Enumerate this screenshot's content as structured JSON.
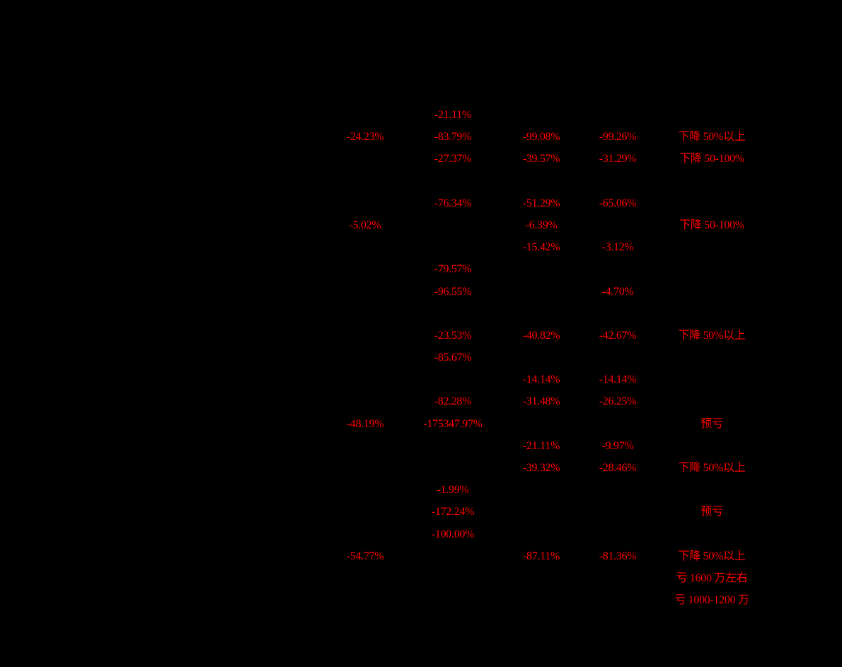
{
  "colors": {
    "background": "#000000",
    "negative_text": "#ff0000"
  },
  "table": {
    "rows": [
      {
        "c1": "",
        "c2": "-21.11%",
        "c3": "",
        "c4": "",
        "c5": ""
      },
      {
        "c1": "-24.23%",
        "c2": "-83.79%",
        "c3": "-99.08%",
        "c4": "-99.26%",
        "c5": "下降 50%以上"
      },
      {
        "c1": "",
        "c2": "-27.37%",
        "c3": "-39.57%",
        "c4": "-31.29%",
        "c5": "下降 50-100%"
      },
      {
        "c1": "",
        "c2": "",
        "c3": "",
        "c4": "",
        "c5": ""
      },
      {
        "c1": "",
        "c2": "-76.34%",
        "c3": "-51.29%",
        "c4": "-65.06%",
        "c5": ""
      },
      {
        "c1": "-5.02%",
        "c2": "",
        "c3": "-6.39%",
        "c4": "",
        "c5": "下降 50-100%"
      },
      {
        "c1": "",
        "c2": "",
        "c3": "-15.42%",
        "c4": "-3.12%",
        "c5": ""
      },
      {
        "c1": "",
        "c2": "-79.57%",
        "c3": "",
        "c4": "",
        "c5": ""
      },
      {
        "c1": "",
        "c2": "-96.55%",
        "c3": "",
        "c4": "-4.70%",
        "c5": ""
      },
      {
        "c1": "",
        "c2": "",
        "c3": "",
        "c4": "",
        "c5": ""
      },
      {
        "c1": "",
        "c2": "-23.53%",
        "c3": "-40.82%",
        "c4": "-42.67%",
        "c5": "下降 50%以上"
      },
      {
        "c1": "",
        "c2": "-85.67%",
        "c3": "",
        "c4": "",
        "c5": ""
      },
      {
        "c1": "",
        "c2": "",
        "c3": "-14.14%",
        "c4": "-14.14%",
        "c5": ""
      },
      {
        "c1": "",
        "c2": "-82.28%",
        "c3": "-31.48%",
        "c4": "-26.25%",
        "c5": ""
      },
      {
        "c1": "-48.19%",
        "c2": "-175347.97%",
        "c3": "",
        "c4": "",
        "c5": "预亏"
      },
      {
        "c1": "",
        "c2": "",
        "c3": "-21.11%",
        "c4": "-9.97%",
        "c5": ""
      },
      {
        "c1": "",
        "c2": "",
        "c3": "-39.32%",
        "c4": "-28.46%",
        "c5": "下降 50%以上"
      },
      {
        "c1": "",
        "c2": "-1.99%",
        "c3": "",
        "c4": "",
        "c5": ""
      },
      {
        "c1": "",
        "c2": "-172.24%",
        "c3": "",
        "c4": "",
        "c5": "预亏"
      },
      {
        "c1": "",
        "c2": "-100.00%",
        "c3": "",
        "c4": "",
        "c5": ""
      },
      {
        "c1": "-54.77%",
        "c2": "",
        "c3": "-87.11%",
        "c4": "-81.36%",
        "c5": "下降 50%以上"
      },
      {
        "c1": "",
        "c2": "",
        "c3": "",
        "c4": "",
        "c5": "亏 1600 万左右"
      },
      {
        "c1": "",
        "c2": "",
        "c3": "",
        "c4": "",
        "c5": "亏 1000-1200 万"
      }
    ]
  }
}
